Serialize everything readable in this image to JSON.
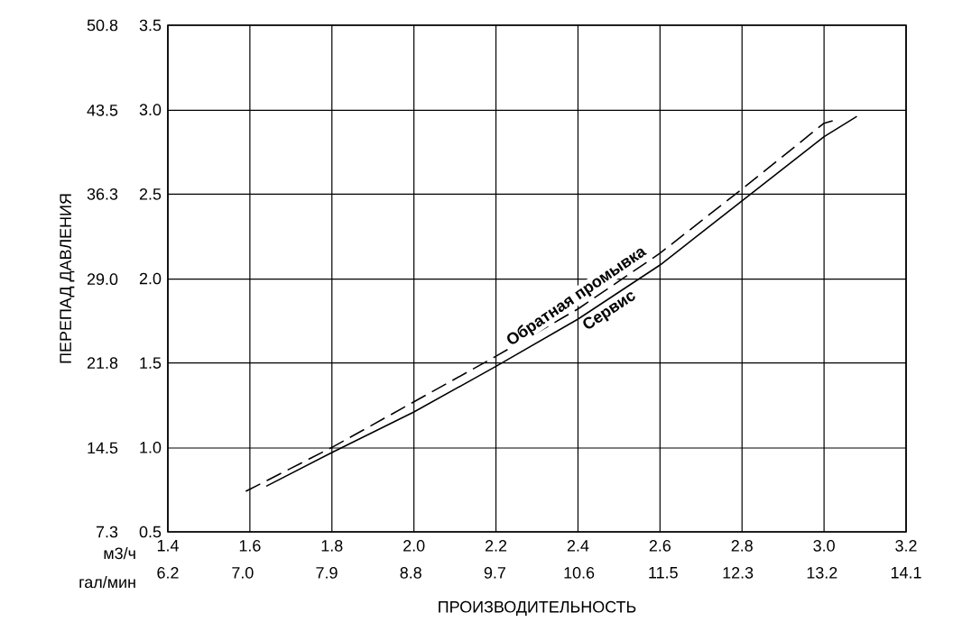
{
  "chart_data": {
    "type": "line",
    "xlabel": "ПРОИЗВОДИТЕЛЬНОСТЬ",
    "ylabel": "ПЕРЕПАД ДАВЛЕНИЯ",
    "annotations": [
      "м3/ч",
      "гал/мин"
    ],
    "xlim": [
      1.4,
      3.2
    ],
    "xticks": [
      1.4,
      1.6,
      1.8,
      {
        "value": 2.0,
        "label": "2.0"
      },
      2.2,
      2.4,
      2.6,
      2.8,
      {
        "value": 3.0,
        "label": "3.0"
      },
      3.2
    ],
    "x2lim": [
      6.2,
      14.1
    ],
    "x2ticks": [
      6.2,
      {
        "value": 7.0,
        "label": "7.0"
      },
      7.9,
      8.8,
      9.7,
      10.6,
      11.5,
      12.3,
      13.2,
      14.1
    ],
    "ylim": [
      7.3,
      50.8
    ],
    "yticks": [
      7.3,
      14.5,
      21.8,
      {
        "value": 29.0,
        "label": "29.0"
      },
      36.3,
      43.5,
      50.8
    ],
    "y2lim": [
      0.5,
      3.5
    ],
    "y2ticks": [
      0.5,
      {
        "value": 1.0,
        "label": "1.0"
      },
      1.5,
      {
        "value": 2.0,
        "label": "2.0"
      },
      2.5,
      {
        "value": 3.0,
        "label": "3.0"
      },
      3.5
    ],
    "grid": true,
    "series": [
      {
        "name": "Обратная промывка",
        "color": "#000000",
        "line_style": "dashed",
        "axis": "y2",
        "x": [
          1.59,
          1.8,
          2.0,
          2.2,
          2.4,
          2.6,
          2.8,
          3.0,
          3.03
        ],
        "values": [
          0.74,
          1.0,
          1.27,
          1.54,
          1.82,
          2.15,
          2.53,
          2.92,
          2.94
        ]
      },
      {
        "name": "Сервис",
        "color": "#000000",
        "line_style": "solid",
        "axis": "y2",
        "x": [
          1.64,
          1.8,
          2.0,
          2.2,
          2.4,
          2.6,
          2.8,
          3.0,
          3.08
        ],
        "values": [
          0.77,
          0.97,
          1.21,
          1.48,
          1.76,
          2.08,
          2.46,
          2.84,
          2.96
        ]
      }
    ]
  }
}
